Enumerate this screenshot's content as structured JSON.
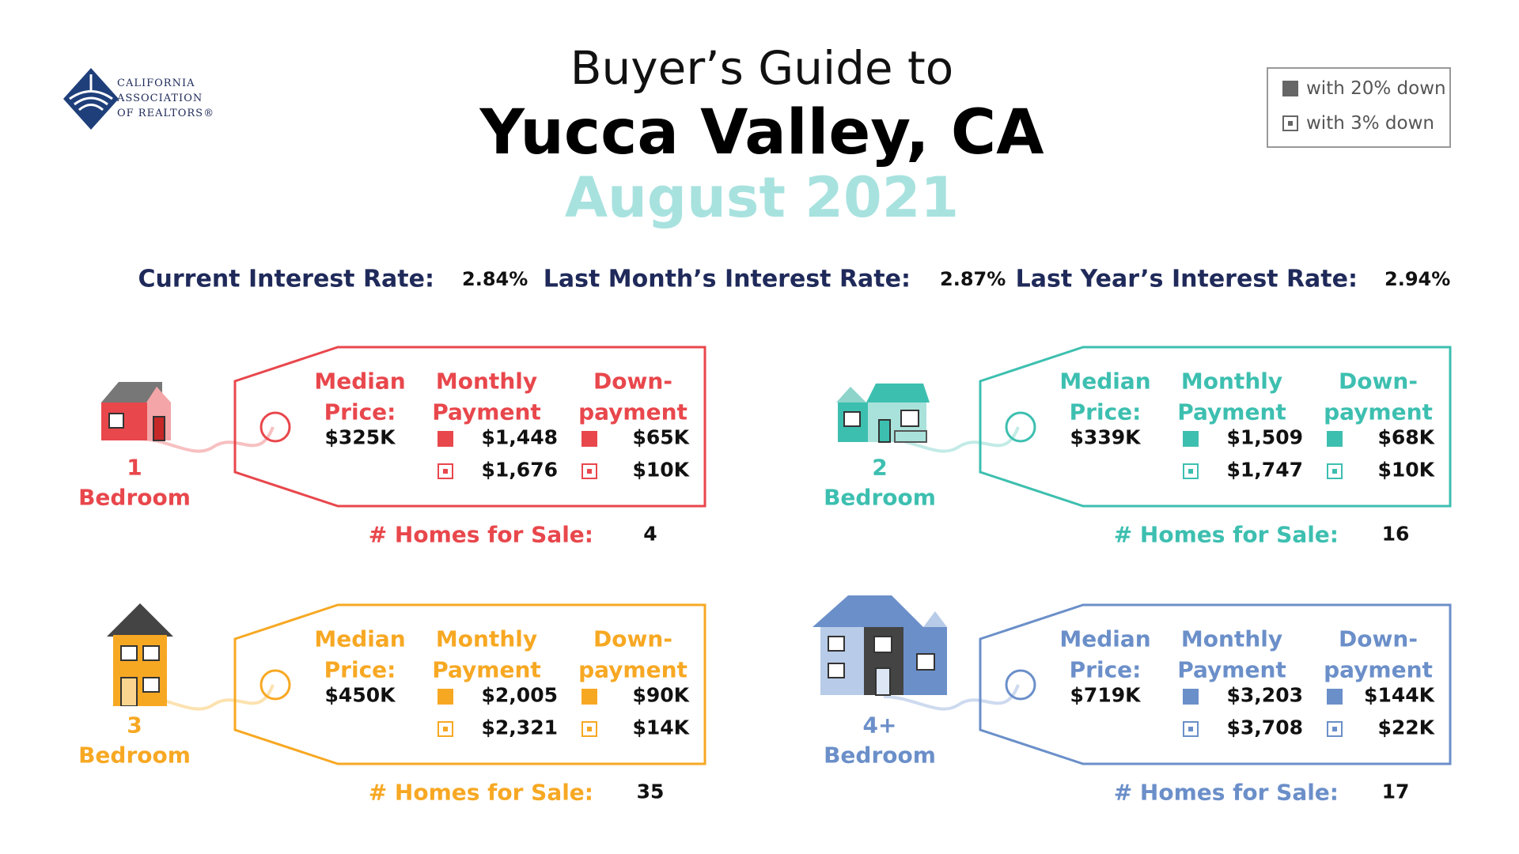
{
  "logo": {
    "lines": [
      "CALIFORNIA",
      "ASSOCIATION",
      "OF REALTORS®"
    ]
  },
  "title": {
    "line1": "Buyer’s Guide to",
    "line2": "Yucca Valley, CA",
    "line3": "August 2021"
  },
  "legend": [
    "with 20% down",
    "with 3% down"
  ],
  "rates": [
    {
      "label": "Current Interest Rate:",
      "value": "2.84%"
    },
    {
      "label": "Last Month’s Interest Rate:",
      "value": "2.87%"
    },
    {
      "label": "Last Year’s Interest Rate:",
      "value": "2.94%"
    }
  ],
  "cards": [
    {
      "bedrooms": "1",
      "bedroom_label": "Bedroom",
      "headers": [
        [
          "Median",
          "Price:"
        ],
        [
          "Monthly",
          "Payment"
        ],
        [
          "Down-",
          "payment"
        ]
      ],
      "median_price": "$325K",
      "monthly": [
        "$1,448",
        "$1,676"
      ],
      "down": [
        "$65K",
        "$10K"
      ],
      "homes_label": "# Homes for Sale:",
      "homes": "4"
    },
    {
      "bedrooms": "2",
      "bedroom_label": "Bedroom",
      "headers": [
        [
          "Median",
          "Price:"
        ],
        [
          "Monthly",
          "Payment"
        ],
        [
          "Down-",
          "payment"
        ]
      ],
      "median_price": "$339K",
      "monthly": [
        "$1,509",
        "$1,747"
      ],
      "down": [
        "$68K",
        "$10K"
      ],
      "homes_label": "# Homes for Sale:",
      "homes": "16"
    },
    {
      "bedrooms": "3",
      "bedroom_label": "Bedroom",
      "headers": [
        [
          "Median",
          "Price:"
        ],
        [
          "Monthly",
          "Payment"
        ],
        [
          "Down-",
          "payment"
        ]
      ],
      "median_price": "$450K",
      "monthly": [
        "$2,005",
        "$2,321"
      ],
      "down": [
        "$90K",
        "$14K"
      ],
      "homes_label": "# Homes for Sale:",
      "homes": "35"
    },
    {
      "bedrooms": "4+",
      "bedroom_label": "Bedroom",
      "headers": [
        [
          "Median",
          "Price:"
        ],
        [
          "Monthly",
          "Payment"
        ],
        [
          "Down-",
          "payment"
        ]
      ],
      "median_price": "$719K",
      "monthly": [
        "$3,203",
        "$3,708"
      ],
      "down": [
        "$144K",
        "$22K"
      ],
      "homes_label": "# Homes for Sale:",
      "homes": "17"
    }
  ]
}
